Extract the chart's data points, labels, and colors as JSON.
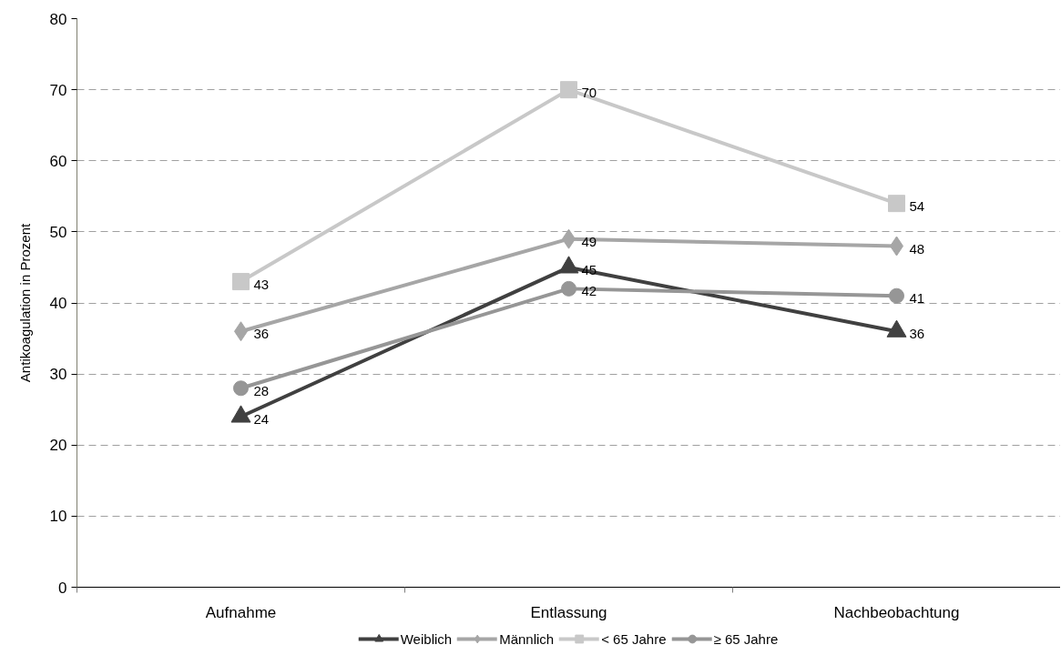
{
  "chart_data": {
    "type": "line",
    "ylabel": "Antikoagulation in Prozent",
    "categories": [
      "Aufnahme",
      "Entlassung",
      "Nachbeobachtung"
    ],
    "series": [
      {
        "name": "Weiblich",
        "color": "#404040",
        "marker": "triangle",
        "values": [
          24,
          45,
          36
        ]
      },
      {
        "name": "Männlich",
        "color": "#a6a6a6",
        "marker": "diamond",
        "values": [
          36,
          49,
          48
        ]
      },
      {
        "name": "< 65 Jahre",
        "color": "#c8c8c8",
        "marker": "square",
        "values": [
          43,
          70,
          54
        ]
      },
      {
        "name": "≥ 65 Jahre",
        "color": "#969696",
        "marker": "circle",
        "values": [
          28,
          42,
          41
        ]
      }
    ],
    "ylim": [
      0,
      80
    ],
    "yticks": [
      0,
      10,
      20,
      30,
      40,
      50,
      60,
      70,
      80
    ],
    "grid": "y",
    "legend": "bottom",
    "data_labels": true,
    "line_style": "solid"
  }
}
